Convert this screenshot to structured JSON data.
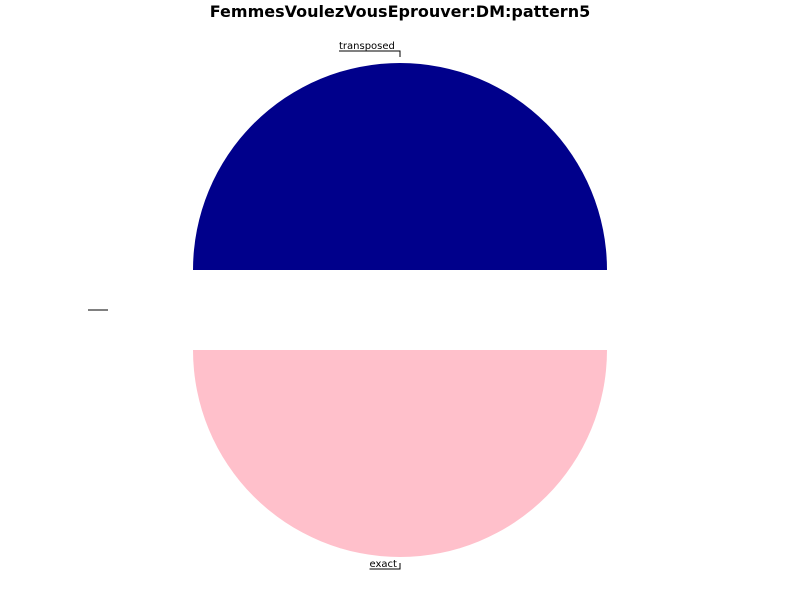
{
  "chart_data": {
    "type": "pie",
    "title": "FemmesVoulezVousEprouver:DM:pattern5",
    "slices": [
      {
        "label": "transposed",
        "value": 1,
        "color": "#00008B"
      },
      {
        "label": "",
        "value": 0,
        "color": "#FFFFFF"
      },
      {
        "label": "exact",
        "value": 1,
        "color": "#FFC0CB"
      }
    ],
    "legend": "none"
  }
}
